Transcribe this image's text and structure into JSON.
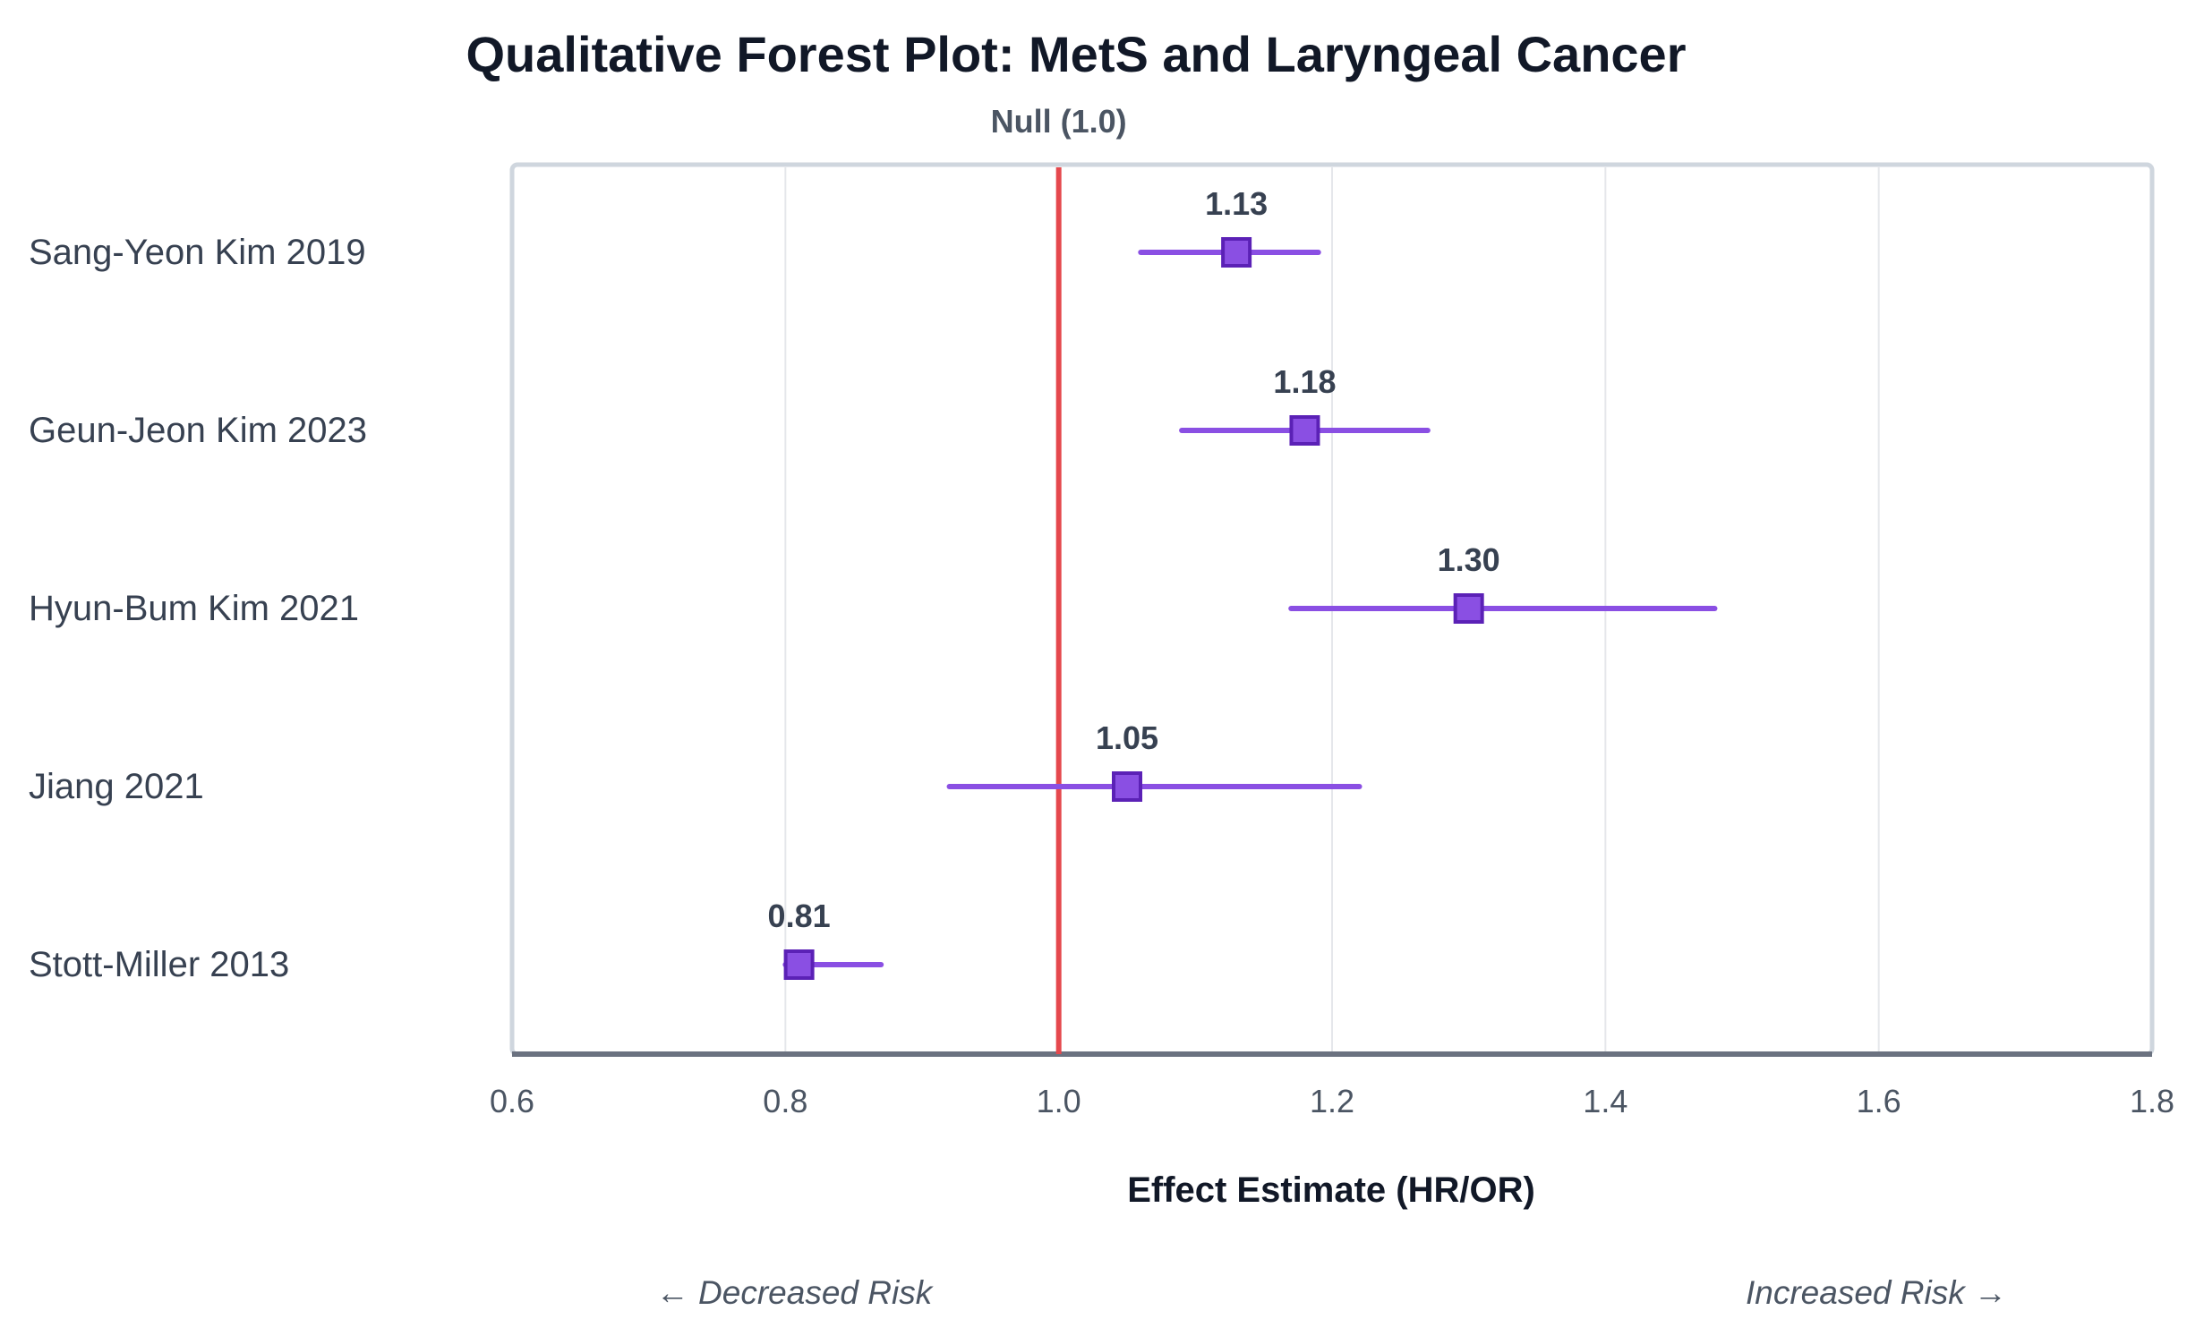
{
  "chart_data": {
    "type": "forest",
    "title": "Qualitative Forest Plot: MetS and Laryngeal Cancer",
    "null_label": "Null (1.0)",
    "null_value": 1.0,
    "xlabel": "Effect Estimate (HR/OR)",
    "xlim": [
      0.6,
      1.8
    ],
    "x_ticks": [
      {
        "value": 0.6,
        "label": "0.6"
      },
      {
        "value": 0.8,
        "label": "0.8"
      },
      {
        "value": 1.0,
        "label": "1.0"
      },
      {
        "value": 1.2,
        "label": "1.2"
      },
      {
        "value": 1.4,
        "label": "1.4"
      },
      {
        "value": 1.6,
        "label": "1.6"
      },
      {
        "value": 1.8,
        "label": "1.8"
      }
    ],
    "grid": true,
    "left_annotation": "← Decreased Risk",
    "right_annotation": "Increased Risk →",
    "studies": [
      {
        "name": "Sang-Yeon Kim 2019",
        "estimate": 1.13,
        "label": "1.13",
        "lower": 1.06,
        "upper": 1.19
      },
      {
        "name": "Geun-Jeon Kim 2023",
        "estimate": 1.18,
        "label": "1.18",
        "lower": 1.09,
        "upper": 1.27
      },
      {
        "name": "Hyun-Bum Kim 2021",
        "estimate": 1.3,
        "label": "1.30",
        "lower": 1.17,
        "upper": 1.48
      },
      {
        "name": "Jiang 2021",
        "estimate": 1.05,
        "label": "1.05",
        "lower": 0.92,
        "upper": 1.22
      },
      {
        "name": "Stott-Miller 2013",
        "estimate": 0.81,
        "label": "0.81",
        "lower": 0.8,
        "upper": 0.87
      }
    ],
    "colors": {
      "estimate": "#8a4fe3",
      "estimate_stroke": "#5b21b6",
      "null_line": "#e5484d",
      "grid": "#e5e7eb",
      "axis": "#6b7280",
      "frame": "#cfd6de",
      "text_dark": "#111827",
      "text_mid": "#374151",
      "text_muted": "#4b5563"
    }
  }
}
